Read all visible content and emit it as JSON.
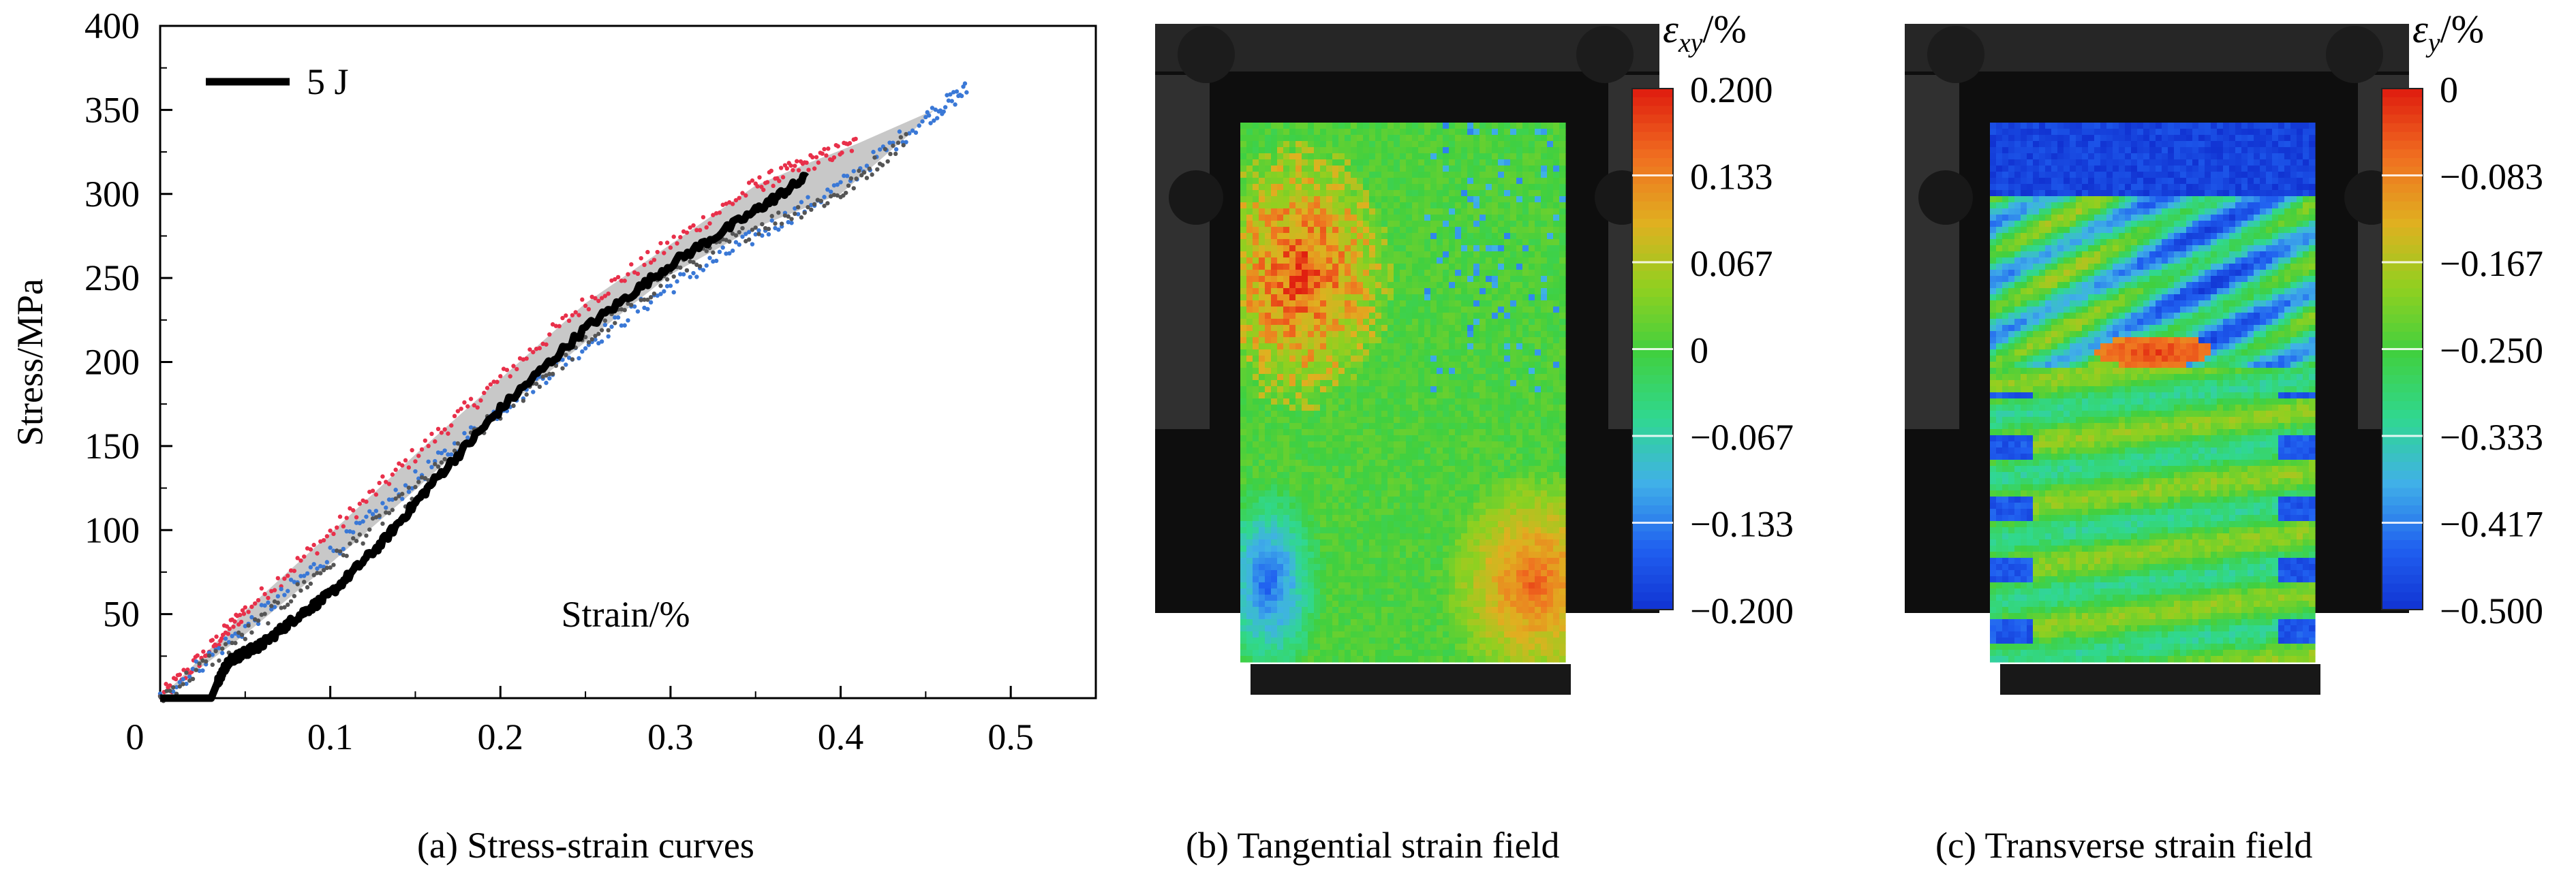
{
  "chart_data": [
    {
      "type": "line",
      "caption": "(a) Stress-strain curves",
      "xlabel": "Strain/%",
      "ylabel": "Stress/MPa",
      "xlim": [
        0,
        0.55
      ],
      "ylim": [
        0,
        400
      ],
      "x_ticks": [
        "0",
        "0.1",
        "0.2",
        "0.3",
        "0.4",
        "0.5"
      ],
      "y_ticks": [
        "50",
        "100",
        "150",
        "200",
        "250",
        "300",
        "350",
        "400"
      ],
      "legend": {
        "position": "top-left",
        "entries": [
          "5 J"
        ]
      },
      "series": [
        {
          "name": "5 J",
          "color": "#000000",
          "x": [
            0.0,
            0.03,
            0.034,
            0.04,
            0.05,
            0.06,
            0.08,
            0.1,
            0.13,
            0.16,
            0.2,
            0.25,
            0.3,
            0.35,
            0.38
          ],
          "y": [
            0,
            0,
            10,
            22,
            27,
            32,
            48,
            62,
            92,
            128,
            172,
            220,
            258,
            290,
            310
          ]
        },
        {
          "color": "#e8304a",
          "x": [
            0.0,
            0.03,
            0.05,
            0.1,
            0.15,
            0.2,
            0.25,
            0.3,
            0.35,
            0.38,
            0.41
          ],
          "y": [
            0,
            30,
            52,
            98,
            145,
            190,
            235,
            270,
            305,
            318,
            330
          ]
        },
        {
          "color": "#3a78d6",
          "x": [
            0.0,
            0.05,
            0.1,
            0.15,
            0.2,
            0.25,
            0.3,
            0.35,
            0.4,
            0.45,
            0.475
          ],
          "y": [
            0,
            42,
            86,
            130,
            172,
            210,
            245,
            275,
            305,
            345,
            363
          ]
        },
        {
          "color": "#555555",
          "x": [
            0.0,
            0.05,
            0.1,
            0.15,
            0.2,
            0.25,
            0.3,
            0.35,
            0.4,
            0.44
          ],
          "y": [
            0,
            38,
            80,
            124,
            170,
            212,
            252,
            280,
            300,
            335
          ]
        }
      ]
    },
    {
      "type": "heatmap",
      "caption": "(b) Tangential strain field",
      "colorbar": {
        "title": "ε",
        "subscript": "xy",
        "unit": "/%",
        "ticks": [
          "0.200",
          "0.133",
          "0.067",
          "0",
          "−0.067",
          "−0.133",
          "−0.200"
        ],
        "range": [
          -0.2,
          0.2
        ]
      }
    },
    {
      "type": "heatmap",
      "caption": "(c) Transverse strain field",
      "colorbar": {
        "title": "ε",
        "subscript": "y",
        "unit": "/%",
        "ticks": [
          "0",
          "−0.083",
          "−0.167",
          "−0.250",
          "−0.333",
          "−0.417",
          "−0.500"
        ],
        "range": [
          -0.5,
          0
        ]
      }
    }
  ],
  "colors": {
    "colormap": [
      "#1030d0",
      "#2060f0",
      "#40b0e8",
      "#30d890",
      "#40d040",
      "#90d020",
      "#e0b020",
      "#f07020",
      "#e02010"
    ],
    "fixture_background": "#0e0e0e",
    "specimen_outline": "#2a2a2a"
  }
}
